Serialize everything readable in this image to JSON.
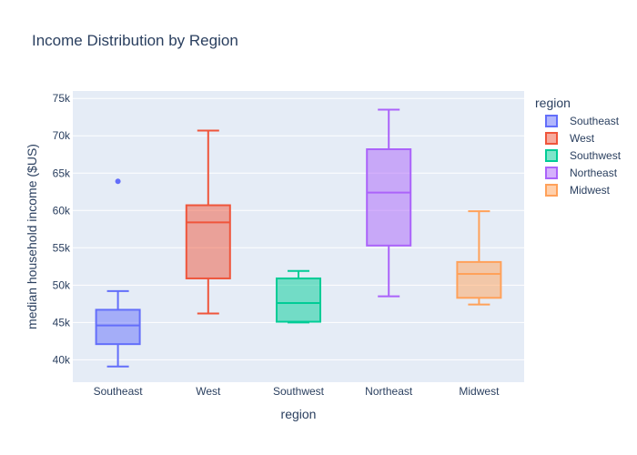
{
  "chart_data": {
    "type": "box",
    "title": "Income Distribution by Region",
    "xlabel": "region",
    "ylabel": "median household income ($US)",
    "ylim": [
      37000,
      76000
    ],
    "yticks": [
      40000,
      45000,
      50000,
      55000,
      60000,
      65000,
      70000,
      75000
    ],
    "ytick_labels": [
      "40k",
      "45k",
      "50k",
      "55k",
      "60k",
      "65k",
      "70k",
      "75k"
    ],
    "grid": true,
    "legend_title": "region",
    "legend_position": "right",
    "categories": [
      "Southeast",
      "West",
      "Southwest",
      "Northeast",
      "Midwest"
    ],
    "series": [
      {
        "name": "Southeast",
        "color": "#636efa",
        "whisker_low": 39100,
        "q1": 42100,
        "median": 44600,
        "q3": 46700,
        "whisker_high": 49200,
        "outliers": [
          63900
        ]
      },
      {
        "name": "West",
        "color": "#EF553B",
        "whisker_low": 46200,
        "q1": 50900,
        "median": 58400,
        "q3": 60700,
        "whisker_high": 70700,
        "outliers": []
      },
      {
        "name": "Southwest",
        "color": "#00cc96",
        "whisker_low": 45000,
        "q1": 45100,
        "median": 47600,
        "q3": 50900,
        "whisker_high": 51900,
        "outliers": []
      },
      {
        "name": "Northeast",
        "color": "#ab63fa",
        "whisker_low": 48500,
        "q1": 55300,
        "median": 62400,
        "q3": 68200,
        "whisker_high": 73500,
        "outliers": []
      },
      {
        "name": "Midwest",
        "color": "#FFA15A",
        "whisker_low": 47400,
        "q1": 48300,
        "median": 51500,
        "q3": 53100,
        "whisker_high": 59900,
        "outliers": []
      }
    ]
  }
}
